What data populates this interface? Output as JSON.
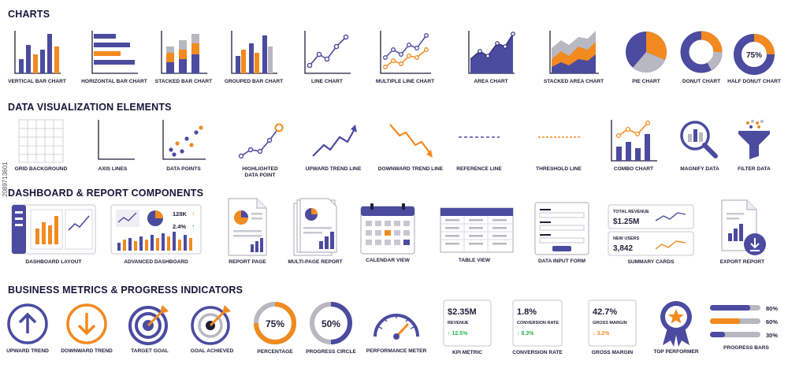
{
  "colors": {
    "purple": "#4b4ba0",
    "orange": "#f28a1f",
    "grey": "#b8b8c2",
    "green": "#2bb24c",
    "dark": "#1f1f3a"
  },
  "sections": {
    "charts": {
      "title": "CHARTS",
      "items": [
        {
          "label": "VERTICAL BAR CHART",
          "icon": "vertical-bar-chart-icon"
        },
        {
          "label": "HORIZONTAL BAR CHART",
          "icon": "horizontal-bar-chart-icon"
        },
        {
          "label": "STACKED BAR CHART",
          "icon": "stacked-bar-chart-icon"
        },
        {
          "label": "GROUPED BAR CHART",
          "icon": "grouped-bar-chart-icon"
        },
        {
          "label": "LINE CHART",
          "icon": "line-chart-icon"
        },
        {
          "label": "MULTIPLE LINE CHART",
          "icon": "multiple-line-chart-icon"
        },
        {
          "label": "AREA CHART",
          "icon": "area-chart-icon"
        },
        {
          "label": "STACKED AREA CHART",
          "icon": "stacked-area-chart-icon"
        },
        {
          "label": "PIE CHART",
          "icon": "pie-chart-icon"
        },
        {
          "label": "DONUT CHART",
          "icon": "donut-chart-icon"
        },
        {
          "label": "HALF DONUT CHART",
          "icon": "half-donut-chart-icon",
          "value": "75%"
        }
      ]
    },
    "elements": {
      "title": "DATA VISUALIZATION ELEMENTS",
      "items": [
        {
          "label": "GRID BACKGROUND",
          "icon": "grid-background-icon"
        },
        {
          "label": "AXIS LINES",
          "icon": "axis-lines-icon"
        },
        {
          "label": "DATA POINTS",
          "icon": "data-points-icon"
        },
        {
          "label": "HIGHLIGHTED DATA POINT",
          "icon": "highlighted-data-point-icon"
        },
        {
          "label": "UPWARD TREND LINE",
          "icon": "upward-trend-line-icon"
        },
        {
          "label": "DOWNWARD TREND LINE",
          "icon": "downward-trend-line-icon"
        },
        {
          "label": "REFERENCE LINE",
          "icon": "reference-line-icon"
        },
        {
          "label": "THRESHOLD LINE",
          "icon": "threshold-line-icon"
        },
        {
          "label": "COMBO CHART",
          "icon": "combo-chart-icon"
        },
        {
          "label": "MAGNIFY DATA",
          "icon": "magnify-data-icon"
        },
        {
          "label": "FILTER DATA",
          "icon": "filter-data-icon"
        }
      ]
    },
    "dashboard": {
      "title": "DASHBOARD & REPORT COMPONENTS",
      "items": [
        {
          "label": "DASHBOARD LAYOUT",
          "icon": "dashboard-layout-icon"
        },
        {
          "label": "ADVANCED DASHBOARD",
          "icon": "advanced-dashboard-icon",
          "stat1": "128K",
          "stat2": "2.4%"
        },
        {
          "label": "REPORT PAGE",
          "icon": "report-page-icon"
        },
        {
          "label": "MULTI-PAGE REPORT",
          "icon": "multi-page-report-icon"
        },
        {
          "label": "CALENDAR VIEW",
          "icon": "calendar-view-icon"
        },
        {
          "label": "TABLE VIEW",
          "icon": "table-view-icon"
        },
        {
          "label": "DATA INPUT FORM",
          "icon": "data-input-form-icon"
        },
        {
          "label": "SUMMARY CARDS",
          "icon": "summary-cards-icon",
          "card1_title": "TOTAL REVENUE",
          "card1_value": "$1.25M",
          "card2_title": "NEW USERS",
          "card2_value": "3,842"
        },
        {
          "label": "EXPORT REPORT",
          "icon": "export-report-icon"
        }
      ]
    },
    "metrics": {
      "title": "BUSINESS METRICS & PROGRESS INDICATORS",
      "items": [
        {
          "label": "UPWARD TREND",
          "icon": "upward-trend-icon"
        },
        {
          "label": "DOWNWARD TREND",
          "icon": "downward-trend-icon"
        },
        {
          "label": "TARGET GOAL",
          "icon": "target-goal-icon"
        },
        {
          "label": "GOAL ACHIEVED",
          "icon": "goal-achieved-icon"
        },
        {
          "label": "PERCENTAGE",
          "icon": "percentage-icon",
          "value": "75%"
        },
        {
          "label": "PROGRESS CIRCLE",
          "icon": "progress-circle-icon",
          "value": "50%"
        },
        {
          "label": "PERFORMANCE METER",
          "icon": "performance-meter-icon"
        },
        {
          "label": "KPI METRIC",
          "icon": "kpi-metric-icon",
          "value": "$2.35M",
          "sub": "REVENUE",
          "delta": "↑ 12.5%"
        },
        {
          "label": "CONVERSION RATE",
          "icon": "conversion-rate-icon",
          "value": "1.8%",
          "sub": "CONVERSION RATE",
          "delta": "↑ 8.3%"
        },
        {
          "label": "GROSS MARGIN",
          "icon": "gross-margin-icon",
          "value": "42.7%",
          "sub": "GROSS MARGIN",
          "delta": "↓ 3.2%"
        },
        {
          "label": "TOP PERFORMER",
          "icon": "top-performer-icon"
        },
        {
          "label": "PROGRESS BARS",
          "icon": "progress-bars-icon",
          "bars": [
            {
              "value": "80%",
              "fraction": 0.8
            },
            {
              "value": "60%",
              "fraction": 0.6
            },
            {
              "value": "30%",
              "fraction": 0.3
            }
          ]
        }
      ]
    }
  },
  "watermark": "2089713601"
}
